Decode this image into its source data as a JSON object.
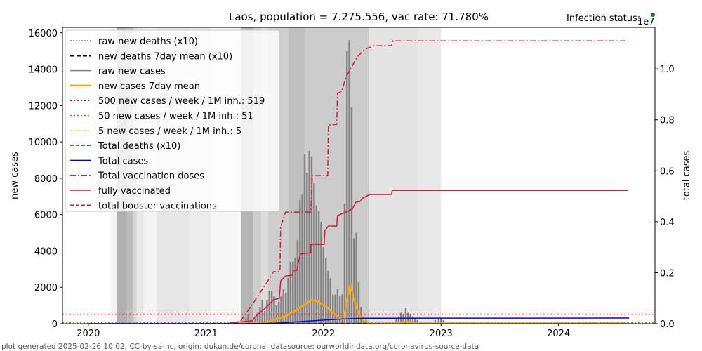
{
  "chart_data": {
    "type": "bar+line",
    "title": "Laos, population = 7.275.556, vac rate: 71.780%",
    "status_label": "Infection status:",
    "status_color": "#008000",
    "ylabel": "new cases",
    "ylabel_right": "total cases",
    "right_scale_label": "1e7",
    "xlim": [
      2019.78,
      2024.82
    ],
    "ylim": [
      0,
      16300
    ],
    "ylim_right": [
      0,
      1.163
    ],
    "x_ticks": [
      {
        "v": 2020,
        "label": "2020"
      },
      {
        "v": 2021,
        "label": "2021"
      },
      {
        "v": 2022,
        "label": "2022"
      },
      {
        "v": 2023,
        "label": "2023"
      },
      {
        "v": 2024,
        "label": "2024"
      }
    ],
    "y_ticks": [
      {
        "v": 0,
        "label": "0"
      },
      {
        "v": 2000,
        "label": "2000"
      },
      {
        "v": 4000,
        "label": "4000"
      },
      {
        "v": 6000,
        "label": "6000"
      },
      {
        "v": 8000,
        "label": "8000"
      },
      {
        "v": 10000,
        "label": "10000"
      },
      {
        "v": 12000,
        "label": "12000"
      },
      {
        "v": 14000,
        "label": "14000"
      },
      {
        "v": 16000,
        "label": "16000"
      }
    ],
    "y_ticks_right": [
      {
        "v": 0,
        "label": "0.0"
      },
      {
        "v": 0.2,
        "label": "0.2"
      },
      {
        "v": 0.4,
        "label": "0.4"
      },
      {
        "v": 0.6,
        "label": "0.6"
      },
      {
        "v": 0.8,
        "label": "0.8"
      },
      {
        "v": 1.0,
        "label": "1.0"
      }
    ],
    "background_bands": [
      [
        2020.19,
        2020.24,
        "#f4f4f4"
      ],
      [
        2020.24,
        2020.33,
        "#b0b0b0"
      ],
      [
        2020.33,
        2020.38,
        "#bdbdbd"
      ],
      [
        2020.38,
        2020.41,
        "#d6d6d6"
      ],
      [
        2020.41,
        2020.47,
        "#e8e8e8"
      ],
      [
        2020.47,
        2020.58,
        "#f4f4f4"
      ],
      [
        2020.58,
        2020.86,
        "#e6e6e6"
      ],
      [
        2020.86,
        2021.04,
        "#ececec"
      ],
      [
        2021.04,
        2021.3,
        "#f6f6f6"
      ],
      [
        2021.3,
        2021.4,
        "#b4b4b4"
      ],
      [
        2021.4,
        2021.47,
        "#cdcdcd"
      ],
      [
        2021.47,
        2021.53,
        "#dcdcdc"
      ],
      [
        2021.53,
        2021.7,
        "#cdcdcd"
      ],
      [
        2021.7,
        2021.84,
        "#c0c0c0"
      ],
      [
        2021.84,
        2022.39,
        "#cccccc"
      ],
      [
        2022.39,
        2022.81,
        "#e4e4e4"
      ],
      [
        2022.81,
        2023.0,
        "#e9e9e9"
      ]
    ],
    "legend": [
      {
        "label": "raw new deaths (x10)",
        "color": "#808080",
        "dash": "2,2",
        "w": 1.5
      },
      {
        "label": "new deaths 7day mean (x10)",
        "color": "#000000",
        "dash": "6,3",
        "w": 2.5
      },
      {
        "label": "raw new cases",
        "color": "#808080",
        "dash": "",
        "w": 1.5
      },
      {
        "label": "new cases 7day mean",
        "color": "#ffa500",
        "dash": "",
        "w": 2.5
      },
      {
        "label": "500 new cases / week / 1M inh.: 519",
        "color": "#ff0000",
        "dash": "2,3",
        "w": 1.5
      },
      {
        "label": "50 new cases / week / 1M inh.: 51",
        "color": "#d2691e",
        "dash": "2,3",
        "w": 1.5
      },
      {
        "label": "5 new cases / week / 1M inh.: 5",
        "color": "#ffd700",
        "dash": "2,3",
        "w": 1.5
      },
      {
        "label": "Total deaths (x10)",
        "color": "#008000",
        "dash": "5,3",
        "w": 1.5
      },
      {
        "label": "Total cases",
        "color": "#0000ff",
        "dash": "",
        "w": 1.5
      },
      {
        "label": "Total vaccination doses",
        "color": "#dc143c",
        "dash": "8,3,2,3",
        "w": 1.5
      },
      {
        "label": "fully vaccinated",
        "color": "#dc143c",
        "dash": "",
        "w": 1.5
      },
      {
        "label": "total booster vaccinations",
        "color": "#dc143c",
        "dash": "5,3",
        "w": 1.5
      }
    ],
    "thresholds": [
      {
        "v": 519,
        "color": "#ff0000"
      },
      {
        "v": 51,
        "color": "#d2691e"
      },
      {
        "v": 5,
        "color": "#ffd700"
      }
    ],
    "raw_new_cases": {
      "x": [
        2021.34,
        2021.36,
        2021.38,
        2021.4,
        2021.42,
        2021.44,
        2021.46,
        2021.48,
        2021.5,
        2021.52,
        2021.54,
        2021.56,
        2021.58,
        2021.6,
        2021.62,
        2021.64,
        2021.66,
        2021.68,
        2021.7,
        2021.72,
        2021.74,
        2021.76,
        2021.78,
        2021.8,
        2021.82,
        2021.84,
        2021.86,
        2021.88,
        2021.9,
        2021.92,
        2021.94,
        2021.96,
        2021.98,
        2022.0,
        2022.02,
        2022.04,
        2022.06,
        2022.08,
        2022.1,
        2022.12,
        2022.14,
        2022.16,
        2022.18,
        2022.2,
        2022.22,
        2022.24,
        2022.26,
        2022.28,
        2022.3,
        2022.32,
        2022.34,
        2022.36,
        2022.38,
        2022.62,
        2022.64,
        2022.66,
        2022.68,
        2022.7,
        2022.72,
        2022.74,
        2022.76,
        2022.78,
        2022.8,
        2022.95,
        2022.98,
        2023.0,
        2023.02
      ],
      "values": [
        300,
        500,
        200,
        100,
        300,
        600,
        900,
        1300,
        700,
        1300,
        1800,
        1800,
        1500,
        1000,
        1200,
        1500,
        1900,
        1700,
        2500,
        3400,
        3400,
        3600,
        4600,
        6800,
        7100,
        9300,
        8300,
        9500,
        9200,
        7700,
        6500,
        6200,
        5600,
        4200,
        3600,
        2900,
        2500,
        1600,
        1600,
        1900,
        1500,
        1600,
        6600,
        15000,
        15600,
        11900,
        4700,
        5000,
        2300,
        900,
        400,
        200,
        100,
        300,
        400,
        600,
        500,
        850,
        600,
        500,
        400,
        300,
        200,
        200,
        300,
        300,
        200
      ]
    },
    "new_cases_7day_mean": {
      "x": [
        2021.3,
        2021.5,
        2021.6,
        2021.65,
        2021.7,
        2021.78,
        2021.85,
        2021.9,
        2021.95,
        2021.98,
        2022.05,
        2022.12,
        2022.17,
        2022.2,
        2022.23,
        2022.26,
        2022.3,
        2022.35,
        2022.4,
        2022.6,
        2022.7,
        2022.8,
        2024.6
      ],
      "values": [
        0,
        50,
        250,
        350,
        500,
        800,
        1100,
        1300,
        1250,
        1100,
        800,
        400,
        200,
        1300,
        2200,
        1300,
        500,
        150,
        0,
        20,
        100,
        20,
        10
      ]
    },
    "total_cases_1e7": {
      "x": [
        2020.0,
        2021.3,
        2021.6,
        2021.9,
        2022.1,
        2022.25,
        2022.35,
        2024.6
      ],
      "values": [
        0,
        0,
        0.002,
        0.011,
        0.017,
        0.02,
        0.0215,
        0.022
      ]
    },
    "total_vaccination_doses_1e7": {
      "x": [
        2021.2,
        2021.296,
        2021.397,
        2021.516,
        2021.576,
        2021.63,
        2021.636,
        2021.678,
        2021.893,
        2021.905,
        2022.036,
        2022.042,
        2022.113,
        2022.119,
        2022.155,
        2022.191,
        2022.233,
        2022.293,
        2022.352,
        2022.43,
        2022.579,
        2022.591,
        2024.591
      ],
      "values": [
        0,
        0.011,
        0.077,
        0.16,
        0.204,
        0.204,
        0.38,
        0.438,
        0.438,
        0.581,
        0.581,
        0.78,
        0.782,
        0.904,
        0.912,
        0.967,
        1.003,
        1.05,
        1.077,
        1.091,
        1.091,
        1.11,
        1.11
      ]
    },
    "fully_vaccinated_1e7": {
      "x": [
        2021.2,
        2021.397,
        2021.415,
        2021.516,
        2021.576,
        2021.624,
        2021.636,
        2021.678,
        2021.737,
        2021.743,
        2021.773,
        2021.785,
        2021.803,
        2021.893,
        2021.893,
        2022.006,
        2022.012,
        2022.042,
        2022.113,
        2022.119,
        2022.245,
        2022.275,
        2022.31,
        2022.334,
        2022.394,
        2022.579,
        2022.585,
        2024.591
      ],
      "values": [
        0.003,
        0.011,
        0.025,
        0.066,
        0.094,
        0.099,
        0.168,
        0.187,
        0.19,
        0.209,
        0.209,
        0.237,
        0.273,
        0.278,
        0.311,
        0.311,
        0.366,
        0.383,
        0.383,
        0.424,
        0.449,
        0.477,
        0.479,
        0.493,
        0.507,
        0.507,
        0.523,
        0.523
      ]
    },
    "total_deaths_x10": {
      "x": [
        2020.0,
        2024.6
      ],
      "values": [
        0,
        40
      ]
    },
    "footer": "plot generated 2025-02-26 10:02, CC-by-sa-nc, origin: dukun.de/corona, datasource: ourworldindata.org/coronavirus-source-data"
  }
}
